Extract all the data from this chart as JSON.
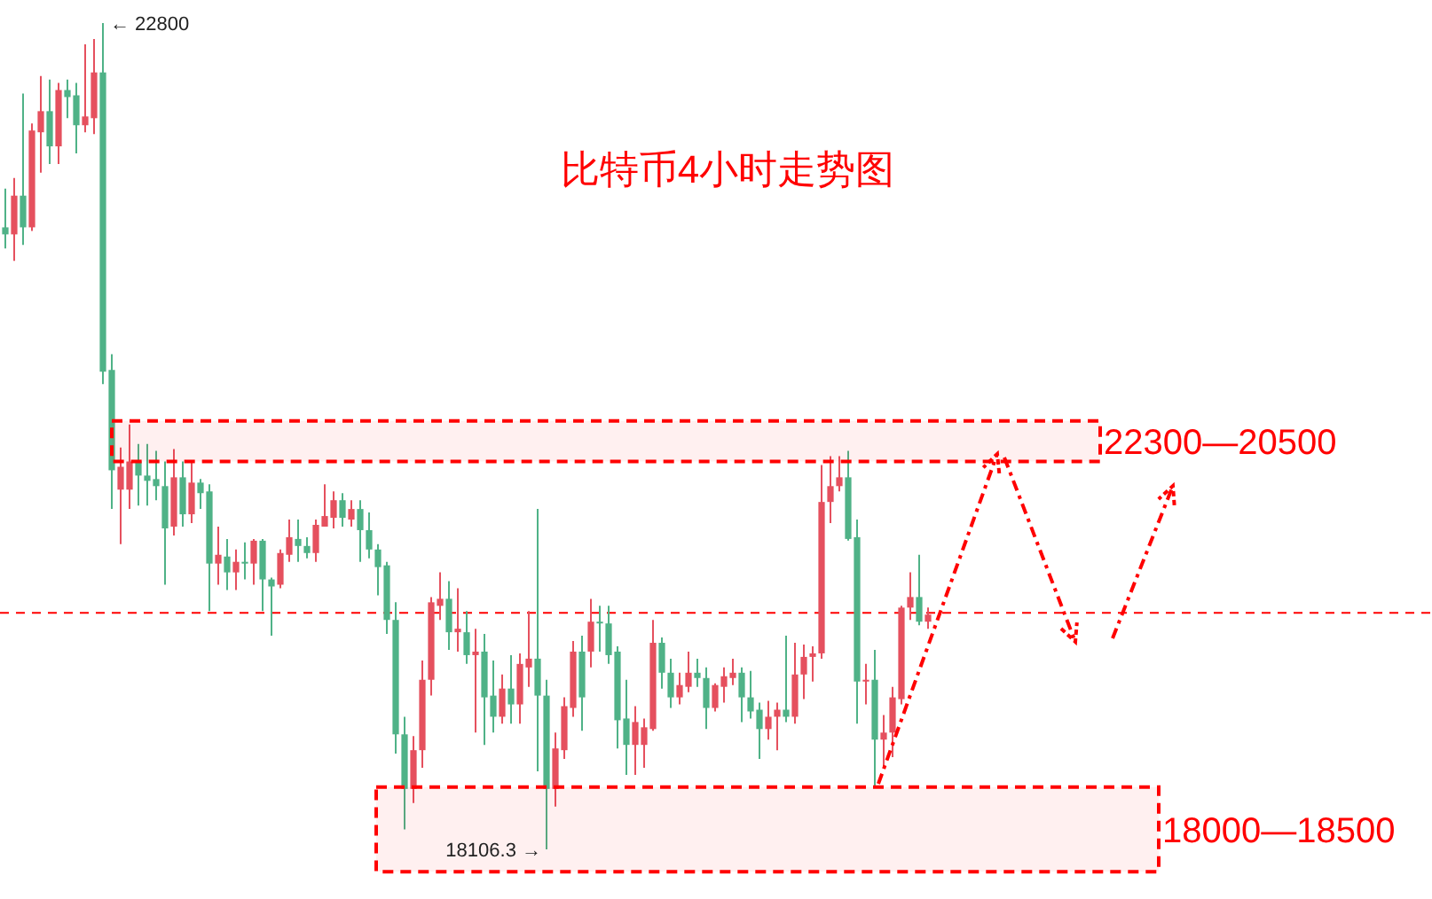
{
  "chart_data": {
    "type": "candlestick",
    "title": "比特币4小时走势图",
    "categories": [
      null,
      null,
      null,
      null,
      null,
      null,
      null,
      null,
      null,
      null,
      null,
      null,
      null,
      null,
      null,
      null,
      null,
      null,
      null,
      null,
      null,
      null,
      null,
      null,
      null,
      null,
      null,
      null,
      null,
      null,
      null,
      null,
      null,
      null,
      null,
      null,
      null,
      null,
      null,
      null,
      null,
      null,
      null,
      null,
      null,
      null,
      null,
      null,
      null,
      null,
      null,
      null,
      null,
      null,
      null,
      null,
      null,
      null,
      null,
      null,
      null,
      null,
      null,
      null,
      null,
      null,
      null,
      null,
      null,
      null,
      null,
      null,
      null,
      null,
      null,
      null,
      null,
      null,
      null,
      null,
      null,
      null,
      null,
      null,
      null,
      null,
      null,
      null,
      null,
      null,
      null,
      null,
      null,
      null,
      null,
      null,
      null,
      null,
      null,
      null,
      null,
      null,
      null,
      null,
      null
    ],
    "ohlc": [
      [
        21640,
        21860,
        21520,
        21600
      ],
      [
        21600,
        21920,
        21450,
        21820
      ],
      [
        21820,
        22400,
        21540,
        21640
      ],
      [
        21640,
        22230,
        21620,
        22190
      ],
      [
        22180,
        22500,
        21950,
        22300
      ],
      [
        22300,
        22480,
        22000,
        22100
      ],
      [
        22100,
        22460,
        22000,
        22420
      ],
      [
        22420,
        22480,
        22260,
        22380
      ],
      [
        22390,
        22460,
        22060,
        22220
      ],
      [
        22220,
        22680,
        22180,
        22270
      ],
      [
        22260,
        22710,
        22170,
        22520
      ],
      [
        22520,
        22800,
        20750,
        20820
      ],
      [
        20830,
        20920,
        20040,
        20260
      ],
      [
        20150,
        20390,
        19840,
        20280
      ],
      [
        20150,
        20520,
        20040,
        20310
      ],
      [
        20310,
        20410,
        20060,
        20230
      ],
      [
        20230,
        20410,
        20060,
        20200
      ],
      [
        20210,
        20370,
        20090,
        20170
      ],
      [
        20170,
        20310,
        19610,
        19930
      ],
      [
        19940,
        20380,
        19890,
        20220
      ],
      [
        20220,
        20310,
        19940,
        20010
      ],
      [
        20010,
        20310,
        19960,
        20190
      ],
      [
        20190,
        20210,
        20040,
        20130
      ],
      [
        20140,
        20180,
        19460,
        19730
      ],
      [
        19730,
        19940,
        19610,
        19780
      ],
      [
        19770,
        19870,
        19580,
        19680
      ],
      [
        19680,
        19810,
        19580,
        19740
      ],
      [
        19740,
        19850,
        19640,
        19730
      ],
      [
        19730,
        19870,
        19610,
        19860
      ],
      [
        19860,
        19870,
        19460,
        19640
      ],
      [
        19640,
        19650,
        19320,
        19600
      ],
      [
        19610,
        19810,
        19590,
        19790
      ],
      [
        19780,
        19980,
        19740,
        19880
      ],
      [
        19870,
        19980,
        19740,
        19830
      ],
      [
        19830,
        19880,
        19760,
        19790
      ],
      [
        19790,
        19980,
        19740,
        19950
      ],
      [
        19940,
        20180,
        19940,
        20000
      ],
      [
        19990,
        20140,
        19930,
        20090
      ],
      [
        20090,
        20130,
        19940,
        19990
      ],
      [
        19980,
        20090,
        19940,
        20040
      ],
      [
        20040,
        20090,
        19740,
        19920
      ],
      [
        19920,
        20020,
        19760,
        19810
      ],
      [
        19810,
        19840,
        19550,
        19710
      ],
      [
        19720,
        19740,
        19330,
        19410
      ],
      [
        19410,
        19510,
        18650,
        18760
      ],
      [
        18760,
        18860,
        18220,
        18450
      ],
      [
        18450,
        18750,
        18370,
        18670
      ],
      [
        18670,
        19180,
        18570,
        19070
      ],
      [
        19070,
        19540,
        18980,
        19510
      ],
      [
        19490,
        19680,
        19410,
        19530
      ],
      [
        19530,
        19630,
        19240,
        19340
      ],
      [
        19340,
        19590,
        19230,
        19360
      ],
      [
        19340,
        19460,
        19160,
        19210
      ],
      [
        19210,
        19360,
        18770,
        19230
      ],
      [
        19230,
        19330,
        18700,
        18970
      ],
      [
        18980,
        19180,
        18770,
        18860
      ],
      [
        18860,
        19100,
        18820,
        19020
      ],
      [
        19020,
        19210,
        18820,
        18930
      ],
      [
        18930,
        19220,
        18820,
        19160
      ],
      [
        19140,
        19460,
        19030,
        19190
      ],
      [
        19190,
        20040,
        18550,
        18980
      ],
      [
        18980,
        19070,
        18106.3,
        18450
      ],
      [
        18450,
        18770,
        18350,
        18680
      ],
      [
        18670,
        18970,
        18620,
        18920
      ],
      [
        18910,
        19290,
        18860,
        19230
      ],
      [
        19230,
        19320,
        18780,
        18970
      ],
      [
        19230,
        19530,
        19140,
        19400
      ],
      [
        19400,
        19490,
        19230,
        19390
      ],
      [
        19390,
        19490,
        19160,
        19210
      ],
      [
        19230,
        19260,
        18680,
        18840
      ],
      [
        18850,
        19070,
        18530,
        18700
      ],
      [
        18700,
        18920,
        18530,
        18830
      ],
      [
        18700,
        18850,
        18570,
        18800
      ],
      [
        18790,
        19410,
        18780,
        19280
      ],
      [
        19280,
        19310,
        19020,
        19110
      ],
      [
        19110,
        19190,
        18910,
        18970
      ],
      [
        18970,
        19110,
        18930,
        19040
      ],
      [
        19030,
        19230,
        19000,
        19110
      ],
      [
        19110,
        19190,
        19030,
        19080
      ],
      [
        19080,
        19140,
        18790,
        18910
      ],
      [
        18910,
        19050,
        18890,
        19040
      ],
      [
        19030,
        19140,
        18940,
        19090
      ],
      [
        19080,
        19190,
        19040,
        19110
      ],
      [
        19110,
        19140,
        18830,
        18970
      ],
      [
        18970,
        19120,
        18850,
        18890
      ],
      [
        18900,
        18940,
        18620,
        18790
      ],
      [
        18790,
        18950,
        18730,
        18860
      ],
      [
        18860,
        18940,
        18670,
        18900
      ],
      [
        18900,
        19320,
        18830,
        18860
      ],
      [
        18860,
        19280,
        18820,
        19100
      ],
      [
        19100,
        19270,
        18960,
        19200
      ],
      [
        19200,
        19260,
        19060,
        19220
      ],
      [
        19220,
        20290,
        19190,
        20080
      ],
      [
        20080,
        20340,
        19960,
        20170
      ],
      [
        20170,
        20340,
        20140,
        20220
      ],
      [
        20220,
        20370,
        19860,
        19870
      ],
      [
        19880,
        19980,
        18820,
        19060
      ],
      [
        19060,
        19160,
        18930,
        19070
      ],
      [
        19070,
        19240,
        18460,
        18730
      ],
      [
        18730,
        18870,
        18570,
        18770
      ],
      [
        18770,
        19030,
        18630,
        18970
      ],
      [
        18960,
        19490,
        18930,
        19480
      ],
      [
        19480,
        19680,
        19410,
        19540
      ],
      [
        19540,
        19780,
        19380,
        19400
      ],
      [
        19400,
        19480,
        19360,
        19440
      ]
    ],
    "colors": [
      "#4fb287",
      "#e5505e",
      "#4fb287",
      "#e5505e",
      "#e5505e",
      "#4fb287",
      "#e5505e",
      "#4fb287",
      "#4fb287",
      "#e5505e",
      "#e5505e",
      "#4fb287",
      "#4fb287",
      "#e5505e",
      "#e5505e",
      "#4fb287",
      "#4fb287",
      "#4fb287",
      "#4fb287",
      "#e5505e",
      "#4fb287",
      "#e5505e",
      "#4fb287",
      "#4fb287",
      "#e5505e",
      "#4fb287",
      "#e5505e",
      "#4fb287",
      "#e5505e",
      "#4fb287",
      "#4fb287",
      "#e5505e",
      "#e5505e",
      "#4fb287",
      "#4fb287",
      "#e5505e",
      "#e5505e",
      "#e5505e",
      "#4fb287",
      "#e5505e",
      "#4fb287",
      "#4fb287",
      "#4fb287",
      "#4fb287",
      "#4fb287",
      "#4fb287",
      "#e5505e",
      "#e5505e",
      "#e5505e",
      "#e5505e",
      "#4fb287",
      "#e5505e",
      "#4fb287",
      "#e5505e",
      "#4fb287",
      "#4fb287",
      "#e5505e",
      "#4fb287",
      "#e5505e",
      "#e5505e",
      "#4fb287",
      "#4fb287",
      "#e5505e",
      "#e5505e",
      "#e5505e",
      "#4fb287",
      "#e5505e",
      "#4fb287",
      "#4fb287",
      "#4fb287",
      "#4fb287",
      "#e5505e",
      "#e5505e",
      "#e5505e",
      "#4fb287",
      "#4fb287",
      "#e5505e",
      "#e5505e",
      "#4fb287",
      "#4fb287",
      "#e5505e",
      "#e5505e",
      "#e5505e",
      "#4fb287",
      "#4fb287",
      "#4fb287",
      "#e5505e",
      "#e5505e",
      "#4fb287",
      "#e5505e",
      "#e5505e",
      "#e5505e",
      "#e5505e",
      "#e5505e",
      "#e5505e",
      "#4fb287",
      "#4fb287",
      "#e5505e",
      "#4fb287",
      "#e5505e",
      "#e5505e",
      "#e5505e",
      "#e5505e",
      "#4fb287",
      "#e5505e"
    ],
    "annotations": [
      "← 22800",
      "18106.3 →"
    ],
    "bands": [
      {
        "axis": "y",
        "from": 20310,
        "to": 20540,
        "label": "22300—20500",
        "color": "#ff0000"
      },
      {
        "axis": "y",
        "from": 17980,
        "to": 18460,
        "label": "18000—18500",
        "color": "#ff0000"
      }
    ],
    "ref_lines": [
      {
        "axis": "y",
        "value": 19450,
        "color": "#ff0000",
        "line_style": "dashed"
      }
    ]
  }
}
